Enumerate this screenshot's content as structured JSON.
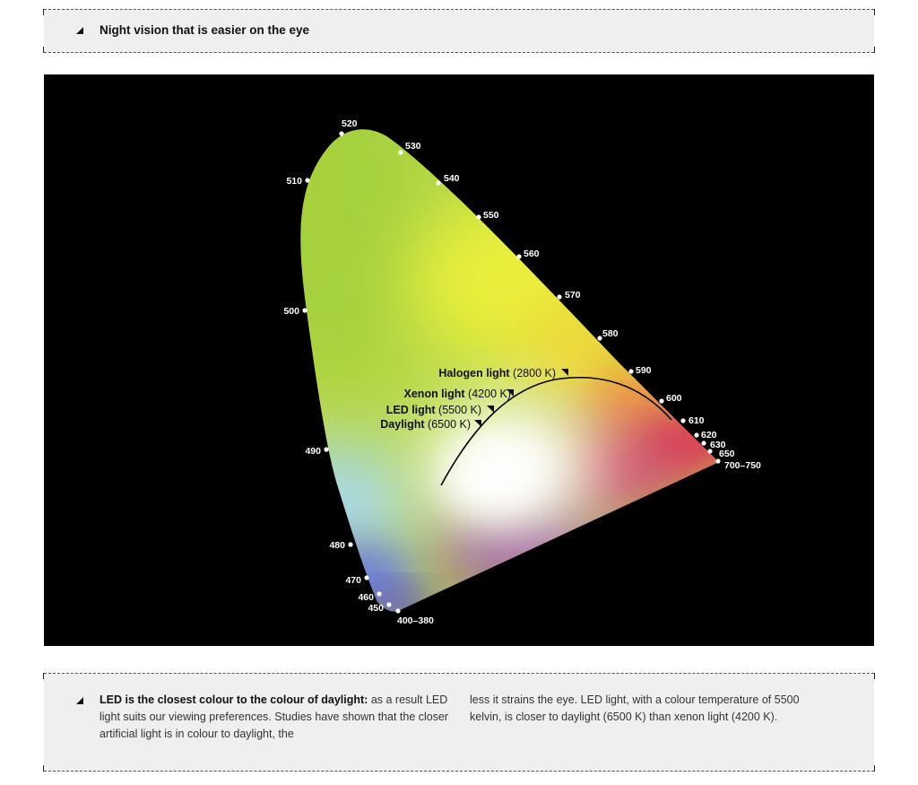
{
  "header": {
    "title": "Night vision that is easier on the eye"
  },
  "diagram": {
    "wavelengths": [
      "520",
      "530",
      "540",
      "550",
      "560",
      "570",
      "580",
      "590",
      "600",
      "610",
      "620",
      "630",
      "650",
      "700–750",
      "510",
      "500",
      "490",
      "480",
      "470",
      "460",
      "450",
      "400–380"
    ],
    "lights": [
      {
        "name": "Halogen light",
        "temp": "(2800 K)"
      },
      {
        "name": "Xenon light",
        "temp": "(4200 K)"
      },
      {
        "name": "LED light",
        "temp": "(5500 K)"
      },
      {
        "name": "Daylight",
        "temp": "(6500 K)"
      }
    ]
  },
  "footer": {
    "lead": "LED is the closest colour to the colour of daylight:",
    "col1_rest": " as a result LED light suits our viewing preferences. Studies have shown that the closer artificial light is in colour to daylight, the",
    "col2": "less it strains the eye. LED light, with a colour temperature of 5500 kelvin, is closer to daylight (6500 K) than xenon light (4200 K)."
  },
  "colors": {
    "background": "#000000",
    "panel": "#efeff0"
  }
}
